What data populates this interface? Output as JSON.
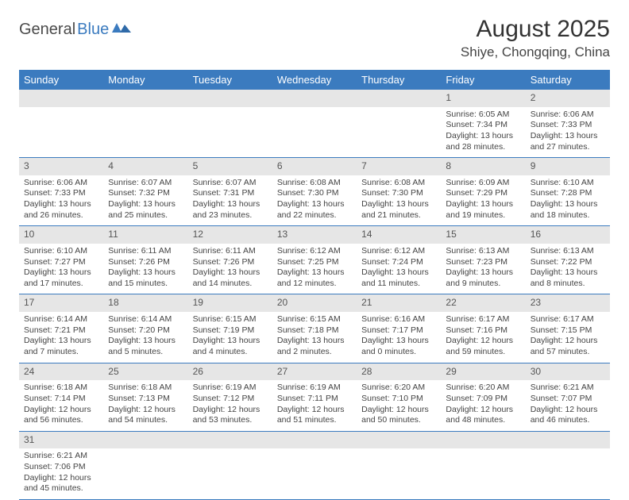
{
  "logo": {
    "part1": "General",
    "part2": "Blue"
  },
  "title": "August 2025",
  "location": "Shiye, Chongqing, China",
  "colors": {
    "header_bg": "#3b7bbf",
    "header_text": "#ffffff",
    "daynum_bg": "#e6e6e6",
    "border": "#3b7bbf",
    "body_text": "#444444"
  },
  "weekdays": [
    "Sunday",
    "Monday",
    "Tuesday",
    "Wednesday",
    "Thursday",
    "Friday",
    "Saturday"
  ],
  "weeks": [
    {
      "nums": [
        "",
        "",
        "",
        "",
        "",
        "1",
        "2"
      ],
      "cells": [
        null,
        null,
        null,
        null,
        null,
        {
          "sr": "Sunrise: 6:05 AM",
          "ss": "Sunset: 7:34 PM",
          "d1": "Daylight: 13 hours",
          "d2": "and 28 minutes."
        },
        {
          "sr": "Sunrise: 6:06 AM",
          "ss": "Sunset: 7:33 PM",
          "d1": "Daylight: 13 hours",
          "d2": "and 27 minutes."
        }
      ]
    },
    {
      "nums": [
        "3",
        "4",
        "5",
        "6",
        "7",
        "8",
        "9"
      ],
      "cells": [
        {
          "sr": "Sunrise: 6:06 AM",
          "ss": "Sunset: 7:33 PM",
          "d1": "Daylight: 13 hours",
          "d2": "and 26 minutes."
        },
        {
          "sr": "Sunrise: 6:07 AM",
          "ss": "Sunset: 7:32 PM",
          "d1": "Daylight: 13 hours",
          "d2": "and 25 minutes."
        },
        {
          "sr": "Sunrise: 6:07 AM",
          "ss": "Sunset: 7:31 PM",
          "d1": "Daylight: 13 hours",
          "d2": "and 23 minutes."
        },
        {
          "sr": "Sunrise: 6:08 AM",
          "ss": "Sunset: 7:30 PM",
          "d1": "Daylight: 13 hours",
          "d2": "and 22 minutes."
        },
        {
          "sr": "Sunrise: 6:08 AM",
          "ss": "Sunset: 7:30 PM",
          "d1": "Daylight: 13 hours",
          "d2": "and 21 minutes."
        },
        {
          "sr": "Sunrise: 6:09 AM",
          "ss": "Sunset: 7:29 PM",
          "d1": "Daylight: 13 hours",
          "d2": "and 19 minutes."
        },
        {
          "sr": "Sunrise: 6:10 AM",
          "ss": "Sunset: 7:28 PM",
          "d1": "Daylight: 13 hours",
          "d2": "and 18 minutes."
        }
      ]
    },
    {
      "nums": [
        "10",
        "11",
        "12",
        "13",
        "14",
        "15",
        "16"
      ],
      "cells": [
        {
          "sr": "Sunrise: 6:10 AM",
          "ss": "Sunset: 7:27 PM",
          "d1": "Daylight: 13 hours",
          "d2": "and 17 minutes."
        },
        {
          "sr": "Sunrise: 6:11 AM",
          "ss": "Sunset: 7:26 PM",
          "d1": "Daylight: 13 hours",
          "d2": "and 15 minutes."
        },
        {
          "sr": "Sunrise: 6:11 AM",
          "ss": "Sunset: 7:26 PM",
          "d1": "Daylight: 13 hours",
          "d2": "and 14 minutes."
        },
        {
          "sr": "Sunrise: 6:12 AM",
          "ss": "Sunset: 7:25 PM",
          "d1": "Daylight: 13 hours",
          "d2": "and 12 minutes."
        },
        {
          "sr": "Sunrise: 6:12 AM",
          "ss": "Sunset: 7:24 PM",
          "d1": "Daylight: 13 hours",
          "d2": "and 11 minutes."
        },
        {
          "sr": "Sunrise: 6:13 AM",
          "ss": "Sunset: 7:23 PM",
          "d1": "Daylight: 13 hours",
          "d2": "and 9 minutes."
        },
        {
          "sr": "Sunrise: 6:13 AM",
          "ss": "Sunset: 7:22 PM",
          "d1": "Daylight: 13 hours",
          "d2": "and 8 minutes."
        }
      ]
    },
    {
      "nums": [
        "17",
        "18",
        "19",
        "20",
        "21",
        "22",
        "23"
      ],
      "cells": [
        {
          "sr": "Sunrise: 6:14 AM",
          "ss": "Sunset: 7:21 PM",
          "d1": "Daylight: 13 hours",
          "d2": "and 7 minutes."
        },
        {
          "sr": "Sunrise: 6:14 AM",
          "ss": "Sunset: 7:20 PM",
          "d1": "Daylight: 13 hours",
          "d2": "and 5 minutes."
        },
        {
          "sr": "Sunrise: 6:15 AM",
          "ss": "Sunset: 7:19 PM",
          "d1": "Daylight: 13 hours",
          "d2": "and 4 minutes."
        },
        {
          "sr": "Sunrise: 6:15 AM",
          "ss": "Sunset: 7:18 PM",
          "d1": "Daylight: 13 hours",
          "d2": "and 2 minutes."
        },
        {
          "sr": "Sunrise: 6:16 AM",
          "ss": "Sunset: 7:17 PM",
          "d1": "Daylight: 13 hours",
          "d2": "and 0 minutes."
        },
        {
          "sr": "Sunrise: 6:17 AM",
          "ss": "Sunset: 7:16 PM",
          "d1": "Daylight: 12 hours",
          "d2": "and 59 minutes."
        },
        {
          "sr": "Sunrise: 6:17 AM",
          "ss": "Sunset: 7:15 PM",
          "d1": "Daylight: 12 hours",
          "d2": "and 57 minutes."
        }
      ]
    },
    {
      "nums": [
        "24",
        "25",
        "26",
        "27",
        "28",
        "29",
        "30"
      ],
      "cells": [
        {
          "sr": "Sunrise: 6:18 AM",
          "ss": "Sunset: 7:14 PM",
          "d1": "Daylight: 12 hours",
          "d2": "and 56 minutes."
        },
        {
          "sr": "Sunrise: 6:18 AM",
          "ss": "Sunset: 7:13 PM",
          "d1": "Daylight: 12 hours",
          "d2": "and 54 minutes."
        },
        {
          "sr": "Sunrise: 6:19 AM",
          "ss": "Sunset: 7:12 PM",
          "d1": "Daylight: 12 hours",
          "d2": "and 53 minutes."
        },
        {
          "sr": "Sunrise: 6:19 AM",
          "ss": "Sunset: 7:11 PM",
          "d1": "Daylight: 12 hours",
          "d2": "and 51 minutes."
        },
        {
          "sr": "Sunrise: 6:20 AM",
          "ss": "Sunset: 7:10 PM",
          "d1": "Daylight: 12 hours",
          "d2": "and 50 minutes."
        },
        {
          "sr": "Sunrise: 6:20 AM",
          "ss": "Sunset: 7:09 PM",
          "d1": "Daylight: 12 hours",
          "d2": "and 48 minutes."
        },
        {
          "sr": "Sunrise: 6:21 AM",
          "ss": "Sunset: 7:07 PM",
          "d1": "Daylight: 12 hours",
          "d2": "and 46 minutes."
        }
      ]
    },
    {
      "nums": [
        "31",
        "",
        "",
        "",
        "",
        "",
        ""
      ],
      "cells": [
        {
          "sr": "Sunrise: 6:21 AM",
          "ss": "Sunset: 7:06 PM",
          "d1": "Daylight: 12 hours",
          "d2": "and 45 minutes."
        },
        null,
        null,
        null,
        null,
        null,
        null
      ]
    }
  ]
}
